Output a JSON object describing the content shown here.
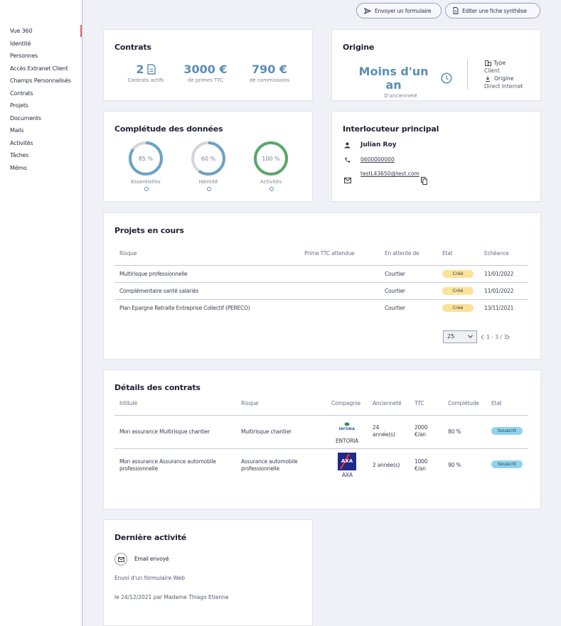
{
  "sidebar": {
    "items": [
      {
        "label": "Vue 360"
      },
      {
        "label": "Identité"
      },
      {
        "label": "Personnes"
      },
      {
        "label": "Accès Extranet Client"
      },
      {
        "label": "Champs Personnalisés"
      },
      {
        "label": "Contrats"
      },
      {
        "label": "Projets"
      },
      {
        "label": "Documents"
      },
      {
        "label": "Mails"
      },
      {
        "label": "Activités"
      },
      {
        "label": "Tâches"
      },
      {
        "label": "Mémo"
      }
    ]
  },
  "topbar": {
    "send_form": "Envoyer un formulaire",
    "edit_summary": "Editer une fiche synthèse"
  },
  "contrats": {
    "title": "Contrats",
    "active_value": "2",
    "active_label": "Contrats actifs",
    "premium_value": "3000 €",
    "premium_label": "de primes TTC",
    "commission_value": "790 €",
    "commission_label": "de commissions"
  },
  "origine": {
    "title": "Origine",
    "seniority_value": "Moins d'un an",
    "seniority_label": "D'ancienneté",
    "type_label": "Type",
    "type_value": "Client",
    "origin_label": "Origine",
    "origin_value": "Direct Internet"
  },
  "completude": {
    "title": "Complétude des données",
    "rings": [
      {
        "text": "85 %",
        "value": 0.85,
        "label": "Essentielles",
        "color": "#6aa3c8"
      },
      {
        "text": "60 %",
        "value": 0.6,
        "label": "Identité",
        "color": "#6aa3c8"
      },
      {
        "text": "100 %",
        "value": 1.0,
        "label": "Activités",
        "color": "#5aa86a"
      }
    ]
  },
  "interlocuteur": {
    "title": "Interlocuteur principal",
    "name": "Julian Roy",
    "phone": "0600000000",
    "email": "testL43650@test.com"
  },
  "projets": {
    "title": "Projets en cours",
    "headers": {
      "risque": "Risque",
      "prime": "Prime TTC attendue",
      "attente": "En attente de",
      "etat": "Etat",
      "echeance": "Echéance"
    },
    "rows": [
      {
        "risque": "Multirisque professionnelle",
        "attente": "Courtier",
        "etat": "Créé",
        "echeance": "11/01/2022"
      },
      {
        "risque": "Complémentaire santé salariés",
        "attente": "Courtier",
        "etat": "Créé",
        "echeance": "11/01/2022"
      },
      {
        "risque": "Plan Epargne Retraite Entreprise Collectif (PERECO)",
        "attente": "Courtier",
        "etat": "Créé",
        "echeance": "13/11/2021"
      }
    ],
    "page_size": "25",
    "pagination": "1 - 3 / 3"
  },
  "details": {
    "title": "Détails des contrats",
    "headers": {
      "intitule": "Intitulé",
      "risque": "Risque",
      "compagnie": "Compagnie",
      "anciennete": "Ancienneté",
      "ttc": "TTC",
      "completude": "Complétude",
      "etat": "Etat"
    },
    "rows": [
      {
        "intitule": "Mon assurance Multirisque chantier",
        "risque": "Multirisque chantier",
        "logo_text": "ENTORIA",
        "compagnie": "ENTORIA",
        "anciennete": "24 année(s)",
        "ttc": "2000 €/an",
        "completude": "80 %",
        "etat": "Souscrit"
      },
      {
        "intitule": "Mon assurance Assurance automobile professionnelle",
        "risque": "Assurance automobile professionnelle",
        "logo_text": "AXA",
        "compagnie": "AXA",
        "anciennete": "2 année(s)",
        "ttc": "1000 €/an",
        "completude": "90 %",
        "etat": "Souscrit"
      }
    ]
  },
  "activite": {
    "title": "Dernière activité",
    "type": "Email envoyé",
    "description": "Envoi d'un formulaire Web",
    "meta": "le 24/12/2021 par Madame Thiago Etienne"
  }
}
